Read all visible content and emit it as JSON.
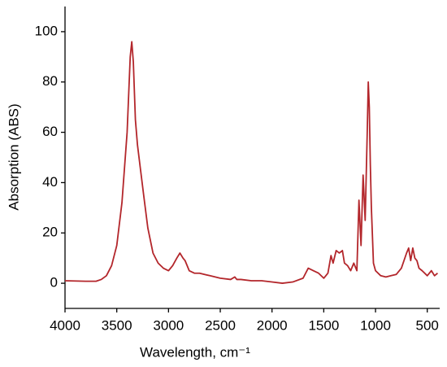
{
  "chart_data": {
    "type": "line",
    "xlabel": "Wavelength, cm⁻¹",
    "ylabel": "Absorption (ABS)",
    "color": "#b3262b",
    "xlim": [
      4000,
      380
    ],
    "ylim": [
      -10,
      110
    ],
    "xticks": [
      4000,
      3500,
      3000,
      2500,
      2000,
      1500,
      1000,
      500
    ],
    "yticks": [
      0,
      20,
      40,
      60,
      80,
      100
    ],
    "x": [
      4000,
      3800,
      3700,
      3650,
      3600,
      3550,
      3500,
      3450,
      3400,
      3370,
      3355,
      3340,
      3320,
      3300,
      3270,
      3240,
      3200,
      3150,
      3100,
      3050,
      3000,
      2960,
      2920,
      2890,
      2860,
      2840,
      2800,
      2750,
      2700,
      2600,
      2500,
      2400,
      2360,
      2340,
      2300,
      2200,
      2100,
      2000,
      1900,
      1800,
      1700,
      1650,
      1600,
      1550,
      1500,
      1460,
      1430,
      1410,
      1380,
      1350,
      1320,
      1300,
      1270,
      1240,
      1210,
      1180,
      1160,
      1140,
      1120,
      1100,
      1080,
      1070,
      1060,
      1050,
      1040,
      1020,
      1000,
      950,
      900,
      850,
      800,
      750,
      700,
      680,
      660,
      640,
      620,
      600,
      580,
      550,
      500,
      460,
      430,
      400
    ],
    "values": [
      1,
      0.8,
      0.8,
      1.5,
      3,
      7,
      15,
      32,
      60,
      90,
      96,
      88,
      65,
      55,
      45,
      35,
      22,
      12,
      8,
      6,
      5,
      7,
      10,
      12,
      10,
      9,
      5,
      4,
      4,
      3,
      2,
      1.5,
      2.5,
      1.5,
      1.5,
      1,
      1,
      0.5,
      0,
      0.5,
      2,
      6,
      5,
      4,
      2,
      4,
      11,
      8,
      13,
      12,
      13,
      8,
      7,
      5,
      8,
      5,
      33,
      15,
      43,
      25,
      60,
      80,
      70,
      47,
      30,
      8,
      5,
      3,
      2.5,
      3,
      3.5,
      6,
      12,
      14,
      9,
      14,
      10,
      9,
      6,
      5,
      3,
      5,
      3,
      4
    ]
  }
}
